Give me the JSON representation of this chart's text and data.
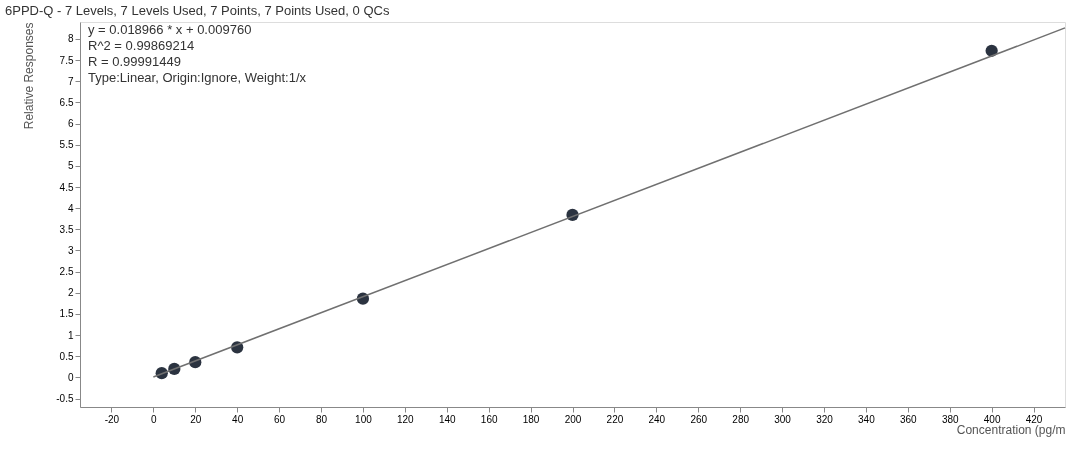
{
  "chart_data": {
    "type": "scatter",
    "title": "6PPD-Q - 7 Levels, 7 Levels Used, 7 Points, 7 Points Used, 0 QCs",
    "xlabel": "Concentration (pg/m",
    "ylabel": "Relative Responses",
    "annotations": [
      "y = 0.018966 * x  + 0.009760",
      "R^2 = 0.99869214",
      "R = 0.99991449",
      "Type:Linear, Origin:Ignore, Weight:1/x"
    ],
    "x": [
      4,
      10,
      20,
      40,
      100,
      200,
      400
    ],
    "series": [
      {
        "color": "#2b3340",
        "values": [
          0.1,
          0.2,
          0.36,
          0.71,
          1.86,
          3.84,
          7.72
        ]
      },
      {
        "type": "line",
        "marker": "none",
        "color": "#707070",
        "x": [
          0,
          435
        ],
        "values": [
          0.01,
          8.26
        ]
      }
    ],
    "marker": "circle",
    "grid": false,
    "xlim": [
      -35,
      435
    ],
    "ylim": [
      -0.7,
      8.4
    ],
    "xticks": [
      -20,
      0,
      20,
      40,
      60,
      80,
      100,
      120,
      140,
      160,
      180,
      200,
      220,
      240,
      260,
      280,
      300,
      320,
      340,
      360,
      380,
      400,
      420
    ],
    "yticks": [
      -0.5,
      0,
      0.5,
      1,
      1.5,
      2,
      2.5,
      3,
      3.5,
      4,
      4.5,
      5,
      5.5,
      6,
      6.5,
      7,
      7.5,
      8
    ]
  }
}
